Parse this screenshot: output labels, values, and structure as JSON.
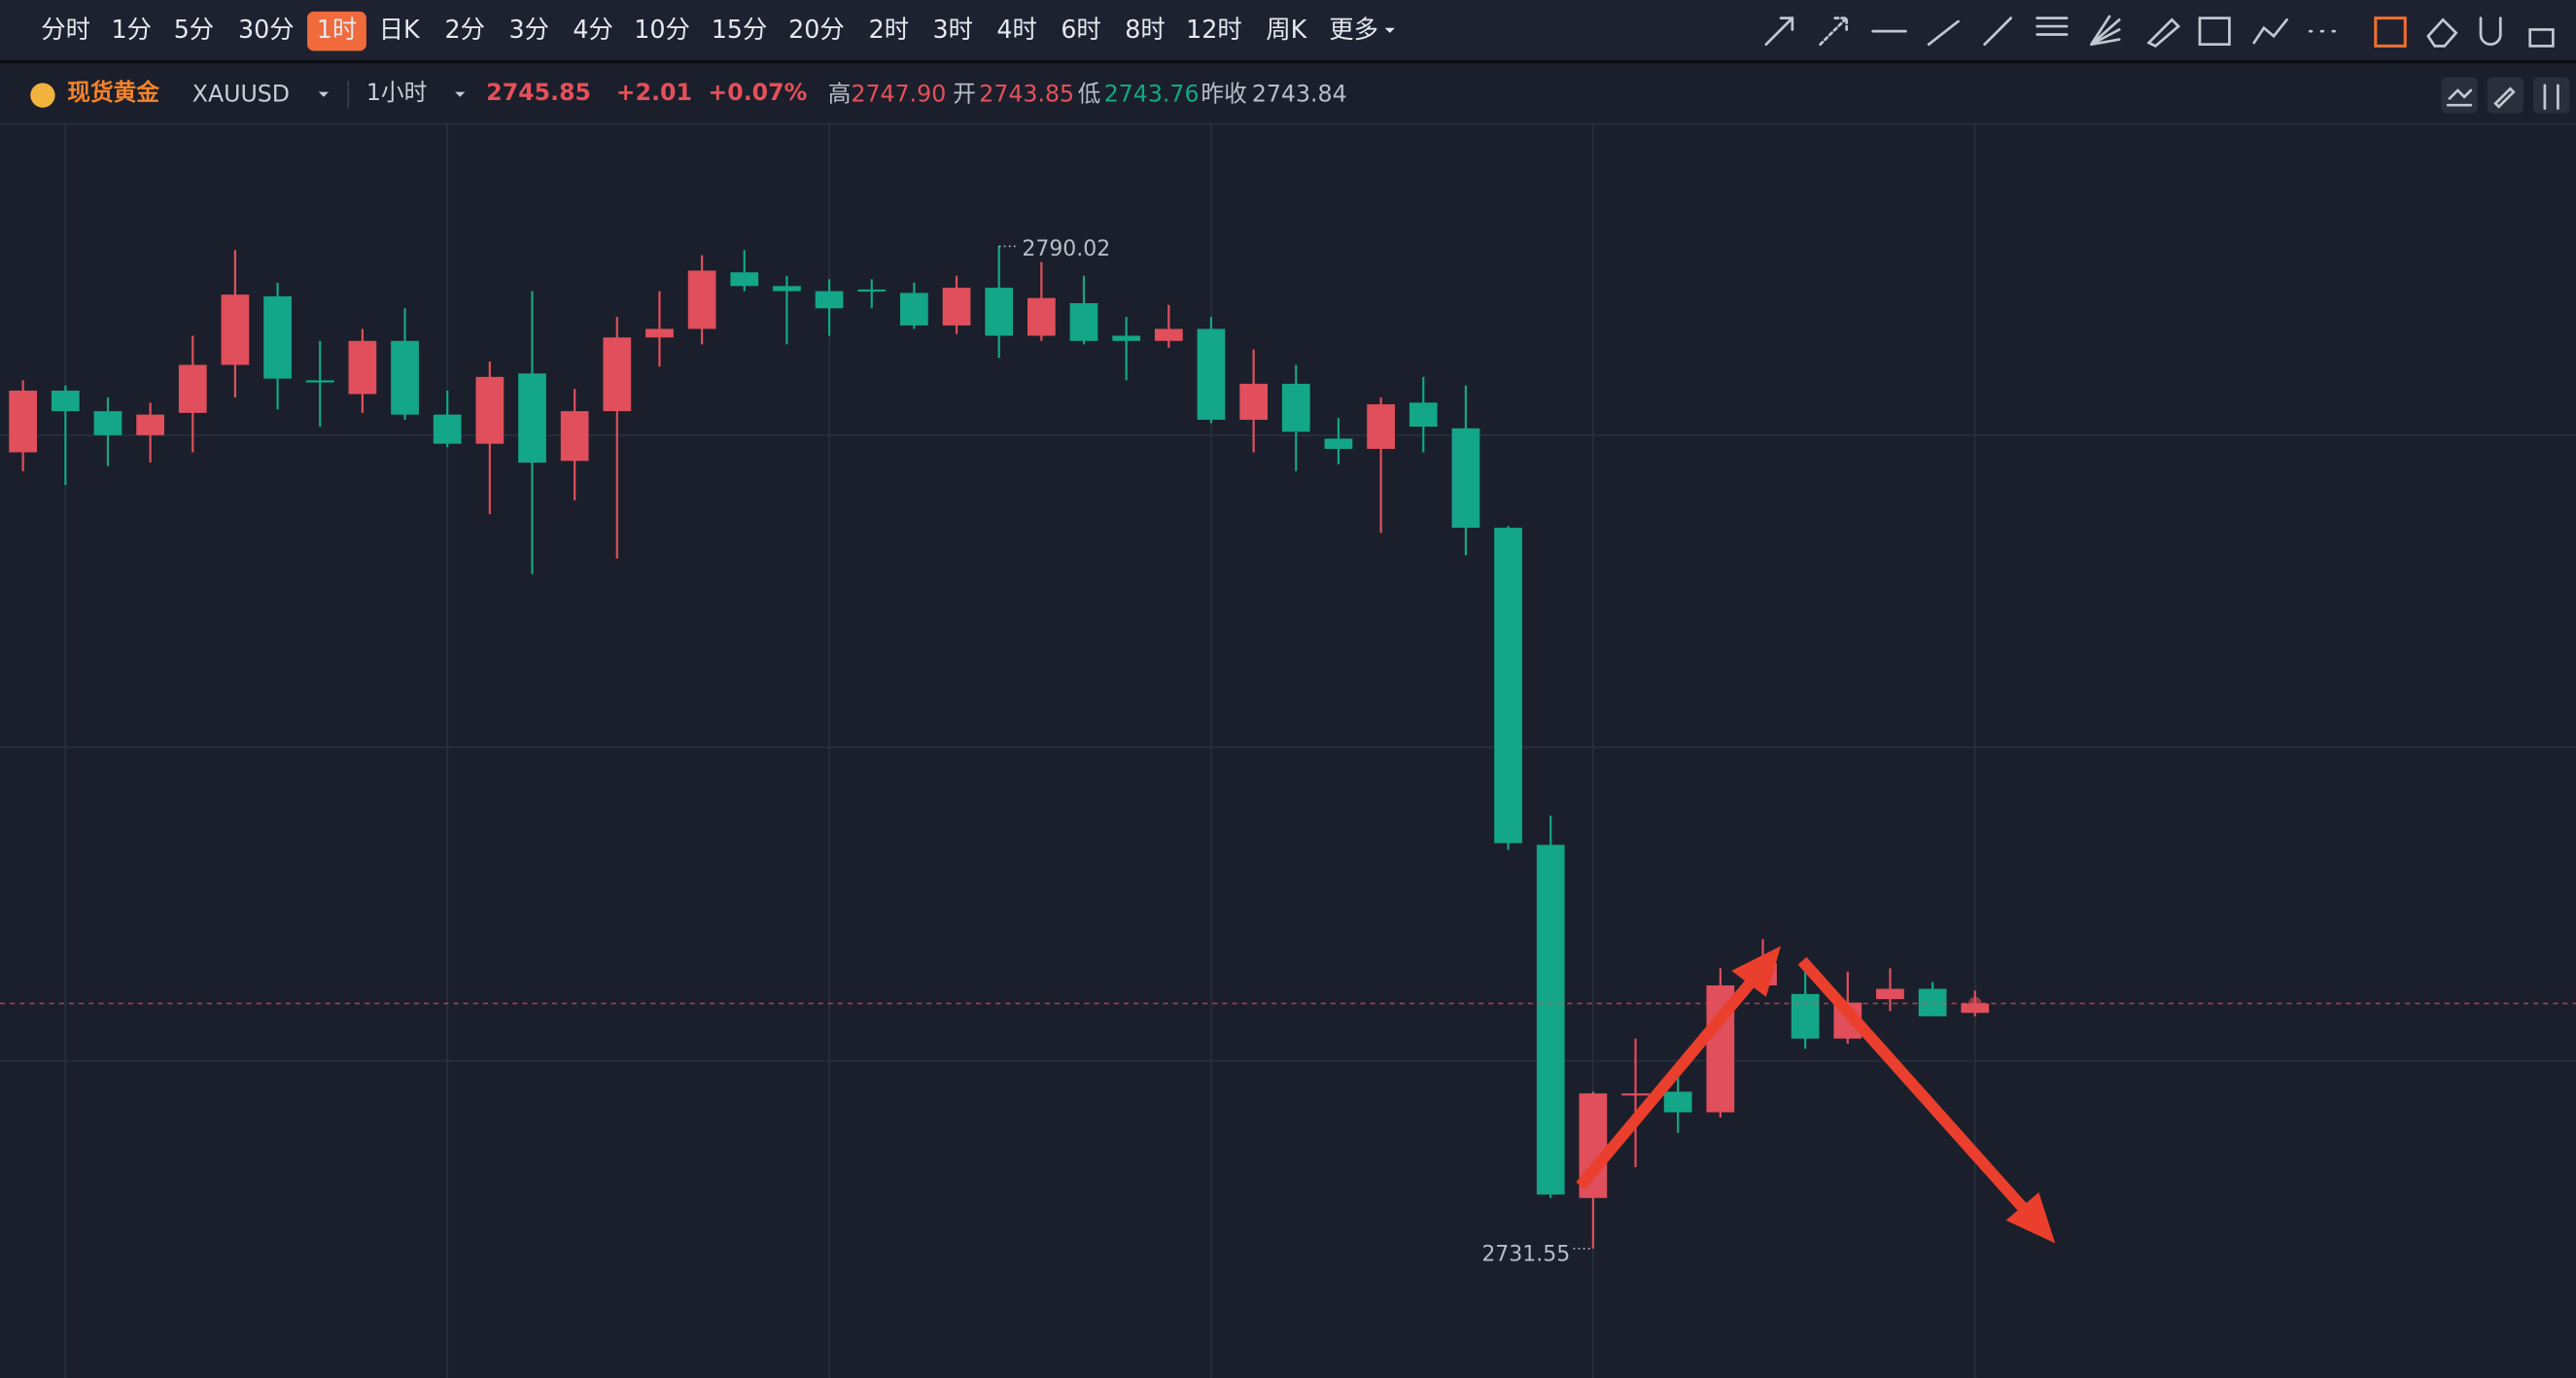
{
  "toolbar": {
    "periods": [
      "分时",
      "1分",
      "5分",
      "30分",
      "1时",
      "日K",
      "2分",
      "3分",
      "4分",
      "10分",
      "15分",
      "20分",
      "2时",
      "3时",
      "4时",
      "6时",
      "8时",
      "12时",
      "周K"
    ],
    "active_index": 4,
    "more": "更多"
  },
  "header": {
    "name": "现货黄金",
    "symbol": "XAUUSD",
    "interval": "1小时",
    "price": "2745.85",
    "change": "+2.01",
    "change_pct": "+0.07%",
    "high_label": "高",
    "high": "2747.90",
    "open_label": "开",
    "open": "2743.85",
    "low_label": "低",
    "low": "2743.76",
    "prev_close_label": "昨收",
    "prev_close": "2743.84"
  },
  "chart_data": {
    "type": "candlestick",
    "categories": [
      null,
      null,
      null,
      null,
      null,
      null,
      null,
      null,
      null,
      null,
      null,
      null,
      null,
      null,
      null,
      null,
      null,
      null,
      null,
      null,
      null,
      null,
      null,
      null,
      null,
      null,
      null,
      null,
      null,
      null,
      null,
      null,
      null,
      null,
      null,
      null,
      null,
      null,
      null,
      null,
      null,
      null,
      null,
      null,
      null,
      null,
      null
    ],
    "open": [
      2778.0,
      2781.6,
      2780.4,
      2779.0,
      2780.3,
      2783.1,
      2787.1,
      2782.2,
      2781.4,
      2784.5,
      2780.2,
      2778.5,
      2782.6,
      2777.5,
      2780.4,
      2784.7,
      2785.2,
      2788.5,
      2787.7,
      2787.4,
      2787.5,
      2787.3,
      2785.4,
      2787.6,
      2784.8,
      2786.7,
      2784.8,
      2784.5,
      2785.2,
      2779.9,
      2782.0,
      2778.8,
      2778.2,
      2780.9,
      2779.4,
      2773.6,
      2755.1,
      2734.5,
      2740.5,
      2740.7,
      2739.5,
      2746.9,
      2746.4,
      2743.8,
      2746.1,
      2746.7,
      2745.3
    ],
    "high": [
      2782.2,
      2781.9,
      2781.2,
      2780.9,
      2784.8,
      2789.8,
      2787.9,
      2784.5,
      2785.2,
      2786.4,
      2781.6,
      2783.3,
      2787.4,
      2781.7,
      2785.9,
      2787.4,
      2789.5,
      2789.8,
      2788.3,
      2788.1,
      2788.1,
      2787.9,
      2788.3,
      2790.02,
      2789.1,
      2788.3,
      2785.9,
      2786.6,
      2785.9,
      2784.0,
      2783.1,
      2780.0,
      2781.2,
      2782.4,
      2781.9,
      2773.7,
      2756.8,
      2740.7,
      2743.8,
      2741.9,
      2747.9,
      2749.6,
      2748.2,
      2747.7,
      2747.9,
      2747.1,
      2746.6
    ],
    "low": [
      2776.9,
      2776.1,
      2777.2,
      2777.4,
      2778.0,
      2781.2,
      2780.5,
      2779.5,
      2780.3,
      2779.9,
      2778.3,
      2774.4,
      2770.9,
      2775.2,
      2771.8,
      2783.0,
      2784.3,
      2787.4,
      2784.3,
      2784.8,
      2786.4,
      2785.2,
      2784.9,
      2783.5,
      2784.5,
      2784.3,
      2782.2,
      2784.1,
      2779.7,
      2778.0,
      2776.9,
      2777.3,
      2773.3,
      2778.0,
      2772.0,
      2754.8,
      2734.5,
      2731.55,
      2736.3,
      2738.3,
      2739.2,
      2746.6,
      2743.2,
      2743.5,
      2745.4,
      2745.1,
      2745.1
    ],
    "close": [
      2781.6,
      2780.4,
      2779.0,
      2780.2,
      2783.1,
      2787.2,
      2782.3,
      2782.1,
      2784.5,
      2780.2,
      2778.5,
      2782.4,
      2777.4,
      2780.4,
      2784.7,
      2785.2,
      2788.6,
      2787.7,
      2787.4,
      2786.4,
      2787.4,
      2785.4,
      2787.6,
      2784.8,
      2787.0,
      2784.5,
      2784.5,
      2785.2,
      2779.9,
      2782.0,
      2779.2,
      2778.2,
      2780.8,
      2779.5,
      2773.6,
      2755.2,
      2734.7,
      2740.6,
      2740.6,
      2739.5,
      2746.9,
      2748.2,
      2743.8,
      2745.9,
      2746.7,
      2745.1,
      2745.85
    ],
    "up_color": "#e04f5b",
    "down_color": "#14a688",
    "ylim": [
      2724.0,
      2797.2
    ],
    "ygrid": [
      2779.0,
      2760.8,
      2742.5
    ],
    "xgrid": [
      1,
      10,
      19,
      28,
      37,
      46
    ],
    "last_price": 2745.85,
    "max_label": 2790.02,
    "max_index": 23,
    "min_label": 2731.55,
    "min_index": 37
  }
}
